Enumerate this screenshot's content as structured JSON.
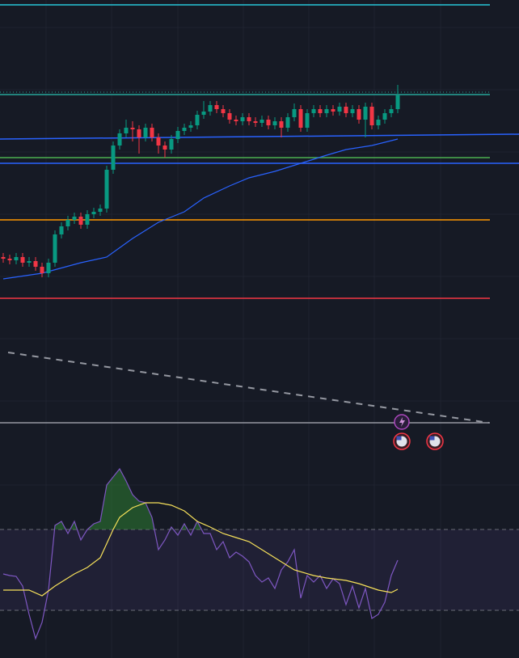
{
  "chart_data": {
    "type": "candlestick",
    "xlim": [
      -0.5,
      79.75
    ],
    "ylim": [
      0,
      540
    ],
    "up_color": "#089981",
    "down_color": "#f23645",
    "open": [
      222,
      220,
      218,
      222,
      215,
      217,
      210,
      202,
      215,
      250,
      260,
      268,
      272,
      262,
      275,
      278,
      282,
      330,
      360,
      375,
      382,
      380,
      370,
      382,
      370,
      360,
      355,
      368,
      378,
      382,
      385,
      398,
      402,
      410,
      405,
      400,
      392,
      390,
      395,
      390,
      388,
      392,
      385,
      390,
      382,
      395,
      405,
      382,
      400,
      405,
      400,
      405,
      402,
      408,
      400,
      405,
      392,
      408,
      385,
      392,
      400,
      405
    ],
    "high": [
      227,
      225,
      227,
      227,
      222,
      222,
      215,
      220,
      255,
      265,
      273,
      277,
      277,
      280,
      283,
      287,
      335,
      365,
      380,
      392,
      390,
      385,
      387,
      387,
      375,
      365,
      373,
      383,
      387,
      390,
      403,
      415,
      415,
      415,
      410,
      405,
      397,
      400,
      400,
      395,
      397,
      397,
      395,
      395,
      400,
      412,
      410,
      405,
      410,
      410,
      410,
      410,
      413,
      413,
      410,
      410,
      413,
      413,
      397,
      405,
      410,
      435
    ],
    "low": [
      215,
      213,
      213,
      210,
      210,
      205,
      197,
      197,
      210,
      245,
      255,
      263,
      257,
      257,
      270,
      273,
      277,
      325,
      355,
      370,
      365,
      350,
      365,
      365,
      350,
      345,
      350,
      363,
      373,
      377,
      380,
      393,
      397,
      400,
      395,
      387,
      385,
      385,
      385,
      383,
      383,
      380,
      380,
      370,
      377,
      390,
      377,
      377,
      395,
      395,
      395,
      397,
      397,
      395,
      395,
      387,
      370,
      380,
      380,
      387,
      395,
      400
    ],
    "close": [
      220,
      218,
      222,
      215,
      217,
      210,
      202,
      215,
      250,
      260,
      268,
      272,
      262,
      275,
      278,
      282,
      330,
      360,
      375,
      382,
      380,
      370,
      382,
      370,
      360,
      355,
      368,
      378,
      382,
      385,
      398,
      402,
      410,
      405,
      400,
      392,
      390,
      395,
      390,
      388,
      392,
      385,
      390,
      382,
      395,
      405,
      382,
      400,
      405,
      400,
      405,
      402,
      408,
      400,
      405,
      392,
      408,
      385,
      392,
      400,
      405,
      422
    ],
    "levels": [
      {
        "value": 534,
        "color": "#26c6da"
      },
      {
        "value": 426,
        "color": "#26a69a",
        "style": "dotted"
      },
      {
        "value": 423,
        "color": "#26a69a"
      },
      {
        "value": 345,
        "color": "#4caf50"
      },
      {
        "value": 338,
        "color": "#2962ff",
        "extend": true
      },
      {
        "value": 268,
        "color": "#ff9800"
      },
      {
        "value": 171,
        "color": "#f23645"
      },
      {
        "value": 17,
        "color": "#9598a1"
      }
    ],
    "trendlines": [
      {
        "x": [
          -0.5,
          79.75
        ],
        "values": [
          368,
          374
        ],
        "color": "#2962ff"
      },
      {
        "x": [
          0.75,
          75.1
        ],
        "values": [
          104,
          17
        ],
        "color": "#9598a1",
        "style": "dashed"
      }
    ],
    "moving_average": {
      "color": "#2962ff",
      "x": [
        0,
        6,
        12,
        16,
        20,
        24,
        28,
        31,
        35,
        38,
        42,
        46,
        50,
        53,
        57,
        61
      ],
      "values": [
        195,
        202,
        215,
        222,
        245,
        265,
        278,
        295,
        310,
        320,
        328,
        338,
        348,
        355,
        360,
        368
      ]
    },
    "rsi": {
      "ylim": [
        0,
        100
      ],
      "bands": [
        70,
        30
      ],
      "color": "#7e57c2",
      "fill_color": "#2e7d32",
      "values": [
        48,
        47.2,
        46.8,
        42,
        28,
        16,
        24,
        40,
        72,
        74,
        68,
        74,
        64.8,
        70,
        72.8,
        74,
        92,
        96,
        100,
        94,
        87.2,
        84,
        83.2,
        76,
        60,
        64.8,
        71.2,
        67.2,
        72.8,
        67.2,
        74,
        68,
        68,
        60,
        64,
        56,
        58.8,
        56.8,
        54,
        47.2,
        44,
        46,
        40.8,
        50,
        54,
        60,
        36,
        47.2,
        44,
        47.2,
        40.8,
        45.6,
        43.2,
        32.8,
        42,
        31.2,
        40.8,
        26,
        28,
        34,
        47.2,
        54.8
      ],
      "ma": {
        "color": "#f7e15a",
        "x": [
          0,
          4,
          6,
          8,
          11,
          13,
          15,
          17,
          18,
          20,
          22,
          24,
          26,
          28,
          30,
          32,
          34,
          36,
          38,
          40,
          43,
          45,
          48,
          50,
          53,
          55,
          58,
          60,
          61
        ],
        "values": [
          40,
          40,
          37.2,
          42,
          48,
          51.2,
          56,
          70,
          76,
          80.8,
          83.2,
          83.2,
          82,
          79.2,
          74,
          71.2,
          68,
          66,
          64,
          60,
          54,
          50,
          47.2,
          46,
          44.8,
          43.2,
          40,
          38.8,
          40.4
        ]
      }
    }
  }
}
